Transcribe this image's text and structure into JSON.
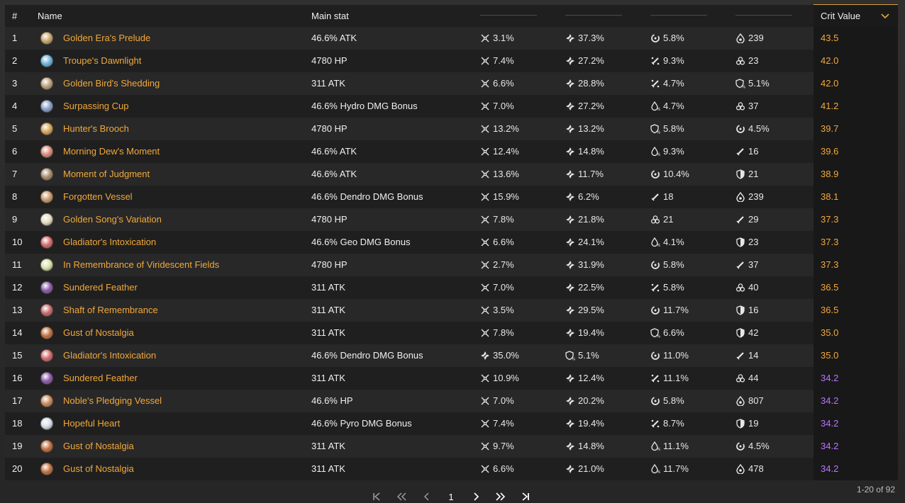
{
  "header": {
    "col_index": "#",
    "col_name": "Name",
    "col_main": "Main stat",
    "col_crit": "Crit Value"
  },
  "rows": [
    {
      "idx": "1",
      "name": "Golden Era's Prelude",
      "main": "46.6% ATK",
      "s1": {
        "icon": "crit-rate-icon",
        "val": "3.1%"
      },
      "s2": {
        "icon": "crit-dmg-icon",
        "val": "37.3%"
      },
      "s3": {
        "icon": "energy-recharge-icon",
        "val": "5.8%"
      },
      "s4": {
        "icon": "elemental-mastery-icon",
        "val": "239"
      },
      "cv": "43.5",
      "cv_color": "orange",
      "art_color": "#c8a56b"
    },
    {
      "idx": "2",
      "name": "Troupe's Dawnlight",
      "main": "4780 HP",
      "s1": {
        "icon": "crit-rate-icon",
        "val": "7.4%"
      },
      "s2": {
        "icon": "crit-dmg-icon",
        "val": "27.2%"
      },
      "s3": {
        "icon": "atk-percent-icon",
        "val": "9.3%"
      },
      "s4": {
        "icon": "hp-flat-icon",
        "val": "23"
      },
      "cv": "42.0",
      "cv_color": "orange",
      "art_color": "#6fb3d9"
    },
    {
      "idx": "3",
      "name": "Golden Bird's Shedding",
      "main": "311 ATK",
      "s1": {
        "icon": "crit-rate-icon",
        "val": "6.6%"
      },
      "s2": {
        "icon": "crit-dmg-icon",
        "val": "28.8%"
      },
      "s3": {
        "icon": "atk-percent-icon",
        "val": "4.7%"
      },
      "s4": {
        "icon": "def-percent-icon",
        "val": "5.1%"
      },
      "cv": "42.0",
      "cv_color": "orange",
      "art_color": "#b9a07a"
    },
    {
      "idx": "4",
      "name": "Surpassing Cup",
      "main": "46.6% Hydro DMG Bonus",
      "s1": {
        "icon": "crit-rate-icon",
        "val": "7.0%"
      },
      "s2": {
        "icon": "crit-dmg-icon",
        "val": "27.2%"
      },
      "s3": {
        "icon": "hp-percent-icon",
        "val": "4.7%"
      },
      "s4": {
        "icon": "hp-flat-icon",
        "val": "37"
      },
      "cv": "41.2",
      "cv_color": "orange",
      "art_color": "#8aa0c8"
    },
    {
      "idx": "5",
      "name": "Hunter's Brooch",
      "main": "4780 HP",
      "s1": {
        "icon": "crit-rate-icon",
        "val": "13.2%"
      },
      "s2": {
        "icon": "crit-dmg-icon",
        "val": "13.2%"
      },
      "s3": {
        "icon": "def-percent-icon",
        "val": "5.8%"
      },
      "s4": {
        "icon": "energy-recharge-icon",
        "val": "4.5%"
      },
      "cv": "39.7",
      "cv_color": "orange",
      "art_color": "#d4a65a"
    },
    {
      "idx": "6",
      "name": "Morning Dew's Moment",
      "main": "46.6% ATK",
      "s1": {
        "icon": "crit-rate-icon",
        "val": "12.4%"
      },
      "s2": {
        "icon": "crit-dmg-icon",
        "val": "14.8%"
      },
      "s3": {
        "icon": "hp-percent-icon",
        "val": "9.3%"
      },
      "s4": {
        "icon": "atk-flat-icon",
        "val": "16"
      },
      "cv": "39.6",
      "cv_color": "orange",
      "art_color": "#d88a7a"
    },
    {
      "idx": "7",
      "name": "Moment of Judgment",
      "main": "46.6% ATK",
      "s1": {
        "icon": "crit-rate-icon",
        "val": "13.6%"
      },
      "s2": {
        "icon": "crit-dmg-icon",
        "val": "11.7%"
      },
      "s3": {
        "icon": "energy-recharge-icon",
        "val": "10.4%"
      },
      "s4": {
        "icon": "def-flat-icon",
        "val": "21"
      },
      "cv": "38.9",
      "cv_color": "orange",
      "art_color": "#a78a6a"
    },
    {
      "idx": "8",
      "name": "Forgotten Vessel",
      "main": "46.6% Dendro DMG Bonus",
      "s1": {
        "icon": "crit-rate-icon",
        "val": "15.9%"
      },
      "s2": {
        "icon": "crit-dmg-icon",
        "val": "6.2%"
      },
      "s3": {
        "icon": "atk-flat-icon",
        "val": "18"
      },
      "s4": {
        "icon": "elemental-mastery-icon",
        "val": "239"
      },
      "cv": "38.1",
      "cv_color": "orange",
      "art_color": "#c79a6a"
    },
    {
      "idx": "9",
      "name": "Golden Song's Variation",
      "main": "4780 HP",
      "s1": {
        "icon": "crit-rate-icon",
        "val": "7.8%"
      },
      "s2": {
        "icon": "crit-dmg-icon",
        "val": "21.8%"
      },
      "s3": {
        "icon": "hp-flat-icon",
        "val": "21"
      },
      "s4": {
        "icon": "atk-flat-icon",
        "val": "29"
      },
      "cv": "37.3",
      "cv_color": "orange",
      "art_color": "#e6dcc0"
    },
    {
      "idx": "10",
      "name": "Gladiator's Intoxication",
      "main": "46.6% Geo DMG Bonus",
      "s1": {
        "icon": "crit-rate-icon",
        "val": "6.6%"
      },
      "s2": {
        "icon": "crit-dmg-icon",
        "val": "24.1%"
      },
      "s3": {
        "icon": "hp-percent-icon",
        "val": "4.1%"
      },
      "s4": {
        "icon": "def-flat-icon",
        "val": "23"
      },
      "cv": "37.3",
      "cv_color": "orange",
      "art_color": "#d26a6a"
    },
    {
      "idx": "11",
      "name": "In Remembrance of Viridescent Fields",
      "main": "4780 HP",
      "s1": {
        "icon": "crit-rate-icon",
        "val": "2.7%"
      },
      "s2": {
        "icon": "crit-dmg-icon",
        "val": "31.9%"
      },
      "s3": {
        "icon": "energy-recharge-icon",
        "val": "5.8%"
      },
      "s4": {
        "icon": "atk-flat-icon",
        "val": "37"
      },
      "cv": "37.3",
      "cv_color": "orange",
      "art_color": "#d8e0a8"
    },
    {
      "idx": "12",
      "name": "Sundered Feather",
      "main": "311 ATK",
      "s1": {
        "icon": "crit-rate-icon",
        "val": "7.0%"
      },
      "s2": {
        "icon": "crit-dmg-icon",
        "val": "22.5%"
      },
      "s3": {
        "icon": "atk-percent-icon",
        "val": "5.8%"
      },
      "s4": {
        "icon": "hp-flat-icon",
        "val": "40"
      },
      "cv": "36.5",
      "cv_color": "orange",
      "art_color": "#8a5aa8"
    },
    {
      "idx": "13",
      "name": "Shaft of Remembrance",
      "main": "311 ATK",
      "s1": {
        "icon": "crit-rate-icon",
        "val": "3.5%"
      },
      "s2": {
        "icon": "crit-dmg-icon",
        "val": "29.5%"
      },
      "s3": {
        "icon": "energy-recharge-icon",
        "val": "11.7%"
      },
      "s4": {
        "icon": "def-flat-icon",
        "val": "16"
      },
      "cv": "36.5",
      "cv_color": "orange",
      "art_color": "#c86a6a"
    },
    {
      "idx": "14",
      "name": "Gust of Nostalgia",
      "main": "311 ATK",
      "s1": {
        "icon": "crit-rate-icon",
        "val": "7.8%"
      },
      "s2": {
        "icon": "crit-dmg-icon",
        "val": "19.4%"
      },
      "s3": {
        "icon": "def-percent-icon",
        "val": "6.6%"
      },
      "s4": {
        "icon": "def-flat-icon",
        "val": "42"
      },
      "cv": "35.0",
      "cv_color": "orange",
      "art_color": "#c07040"
    },
    {
      "idx": "15",
      "name": "Gladiator's Intoxication",
      "main": "46.6% Dendro DMG Bonus",
      "s1": {
        "icon": "crit-dmg-icon",
        "val": "35.0%"
      },
      "s2": {
        "icon": "def-percent-icon",
        "val": "5.1%"
      },
      "s3": {
        "icon": "energy-recharge-icon",
        "val": "11.0%"
      },
      "s4": {
        "icon": "atk-flat-icon",
        "val": "14"
      },
      "cv": "35.0",
      "cv_color": "orange",
      "art_color": "#d26a6a"
    },
    {
      "idx": "16",
      "name": "Sundered Feather",
      "main": "311 ATK",
      "s1": {
        "icon": "crit-rate-icon",
        "val": "10.9%"
      },
      "s2": {
        "icon": "crit-dmg-icon",
        "val": "12.4%"
      },
      "s3": {
        "icon": "atk-percent-icon",
        "val": "11.1%"
      },
      "s4": {
        "icon": "hp-flat-icon",
        "val": "44"
      },
      "cv": "34.2",
      "cv_color": "purple",
      "art_color": "#8a5aa8"
    },
    {
      "idx": "17",
      "name": "Noble's Pledging Vessel",
      "main": "46.6% HP",
      "s1": {
        "icon": "crit-rate-icon",
        "val": "7.0%"
      },
      "s2": {
        "icon": "crit-dmg-icon",
        "val": "20.2%"
      },
      "s3": {
        "icon": "energy-recharge-icon",
        "val": "5.8%"
      },
      "s4": {
        "icon": "elemental-mastery-icon",
        "val": "807"
      },
      "cv": "34.2",
      "cv_color": "purple",
      "art_color": "#c88a5a"
    },
    {
      "idx": "18",
      "name": "Hopeful Heart",
      "main": "46.6% Pyro DMG Bonus",
      "s1": {
        "icon": "crit-rate-icon",
        "val": "7.4%"
      },
      "s2": {
        "icon": "crit-dmg-icon",
        "val": "19.4%"
      },
      "s3": {
        "icon": "atk-percent-icon",
        "val": "8.7%"
      },
      "s4": {
        "icon": "def-flat-icon",
        "val": "19"
      },
      "cv": "34.2",
      "cv_color": "purple",
      "art_color": "#d8dce8"
    },
    {
      "idx": "19",
      "name": "Gust of Nostalgia",
      "main": "311 ATK",
      "s1": {
        "icon": "crit-rate-icon",
        "val": "9.7%"
      },
      "s2": {
        "icon": "crit-dmg-icon",
        "val": "14.8%"
      },
      "s3": {
        "icon": "hp-percent-icon",
        "val": "11.1%"
      },
      "s4": {
        "icon": "energy-recharge-icon",
        "val": "4.5%"
      },
      "cv": "34.2",
      "cv_color": "purple",
      "art_color": "#c07040"
    },
    {
      "idx": "20",
      "name": "Gust of Nostalgia",
      "main": "311 ATK",
      "s1": {
        "icon": "crit-rate-icon",
        "val": "6.6%"
      },
      "s2": {
        "icon": "crit-dmg-icon",
        "val": "21.0%"
      },
      "s3": {
        "icon": "hp-percent-icon",
        "val": "11.7%"
      },
      "s4": {
        "icon": "elemental-mastery-icon",
        "val": "478"
      },
      "cv": "34.2",
      "cv_color": "purple",
      "art_color": "#c07040"
    }
  ],
  "pagination": {
    "current_page": "1",
    "range_text": "1-20 of 92"
  },
  "colors": {
    "accent_orange": "#f2a83b",
    "accent_purple": "#b876ff",
    "sort_accent": "#d7a13b"
  }
}
